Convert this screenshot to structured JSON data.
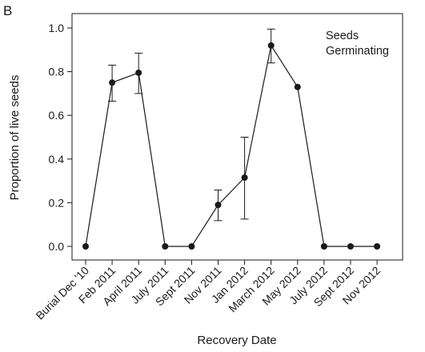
{
  "chart_data": {
    "type": "line",
    "panel_label": "B",
    "xlabel": "Recovery Date",
    "ylabel": "Proportion of live seeds",
    "ylim": [
      0,
      1.0
    ],
    "yticks": [
      "0.0",
      "0.2",
      "0.4",
      "0.6",
      "0.8",
      "1.0"
    ],
    "categories": [
      "Burial Dec '10",
      "Feb 2011",
      "April 2011",
      "July 2011",
      "Sept 2011",
      "Nov 2011",
      "Jan 2012",
      "March 2012",
      "May 2012",
      "July 2012",
      "Sept 2012",
      "Nov 2012"
    ],
    "annotation": [
      "Seeds",
      "Germinating"
    ],
    "grid": false,
    "series": [
      {
        "values": [
          0.0,
          0.75,
          0.795,
          0.0,
          0.0,
          0.19,
          0.315,
          0.92,
          0.73,
          0.0,
          0.0,
          0.0
        ],
        "error_low": [
          null,
          0.665,
          0.7,
          null,
          null,
          0.118,
          0.125,
          0.84,
          null,
          null,
          null,
          null
        ],
        "error_high": [
          null,
          0.83,
          0.885,
          null,
          null,
          0.258,
          0.5,
          0.995,
          null,
          null,
          null,
          null
        ],
        "color": "#1a1a1a"
      }
    ]
  }
}
